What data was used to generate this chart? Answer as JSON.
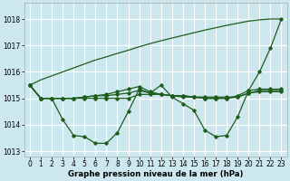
{
  "background_color": "#cce8ee",
  "grid_color": "#ffffff",
  "line_color": "#1e5c1e",
  "xlabel": "Graphe pression niveau de la mer (hPa)",
  "ylim": [
    1012.8,
    1018.6
  ],
  "xlim": [
    -0.5,
    23.5
  ],
  "yticks": [
    1013,
    1014,
    1015,
    1016,
    1017,
    1018
  ],
  "xticks": [
    0,
    1,
    2,
    3,
    4,
    5,
    6,
    7,
    8,
    9,
    10,
    11,
    12,
    13,
    14,
    15,
    16,
    17,
    18,
    19,
    20,
    21,
    22,
    23
  ],
  "series": [
    [
      1015.5,
      1015.0,
      1015.0,
      1014.2,
      1013.6,
      1013.55,
      1013.3,
      1013.3,
      1013.7,
      1014.5,
      1015.35,
      1015.2,
      1015.5,
      1015.05,
      1014.8,
      1014.55,
      1013.8,
      1013.55,
      1013.6,
      1014.3,
      1015.3,
      1016.0,
      1016.9,
      1018.0
    ],
    [
      1015.5,
      1015.0,
      1015.0,
      1015.0,
      1015.0,
      1015.05,
      1015.1,
      1015.15,
      1015.25,
      1015.35,
      1015.45,
      1015.25,
      1015.15,
      1015.1,
      1015.05,
      1015.05,
      1015.0,
      1015.0,
      1015.0,
      1015.1,
      1015.3,
      1015.35,
      1015.35,
      1015.35
    ],
    [
      1015.5,
      1015.0,
      1015.0,
      1015.0,
      1015.0,
      1015.05,
      1015.1,
      1015.1,
      1015.15,
      1015.2,
      1015.3,
      1015.2,
      1015.15,
      1015.1,
      1015.1,
      1015.05,
      1015.0,
      1015.0,
      1015.0,
      1015.05,
      1015.2,
      1015.3,
      1015.3,
      1015.3
    ],
    [
      1015.5,
      1015.0,
      1015.0,
      1015.0,
      1015.0,
      1015.0,
      1015.0,
      1015.0,
      1015.0,
      1015.0,
      1015.15,
      1015.15,
      1015.15,
      1015.1,
      1015.1,
      1015.05,
      1015.05,
      1015.05,
      1015.05,
      1015.05,
      1015.2,
      1015.25,
      1015.25,
      1015.25
    ]
  ],
  "diagonal_series": [
    1015.5,
    1015.7,
    1015.85,
    1016.0,
    1016.15,
    1016.3,
    1016.45,
    1016.57,
    1016.7,
    1016.82,
    1016.95,
    1017.07,
    1017.18,
    1017.28,
    1017.38,
    1017.48,
    1017.58,
    1017.67,
    1017.76,
    1017.84,
    1017.92,
    1017.97,
    1018.0,
    1018.0
  ],
  "marker": "D",
  "markersize": 1.8,
  "linewidth": 0.9,
  "tick_fontsize": 5.5,
  "xlabel_fontsize": 6.2
}
